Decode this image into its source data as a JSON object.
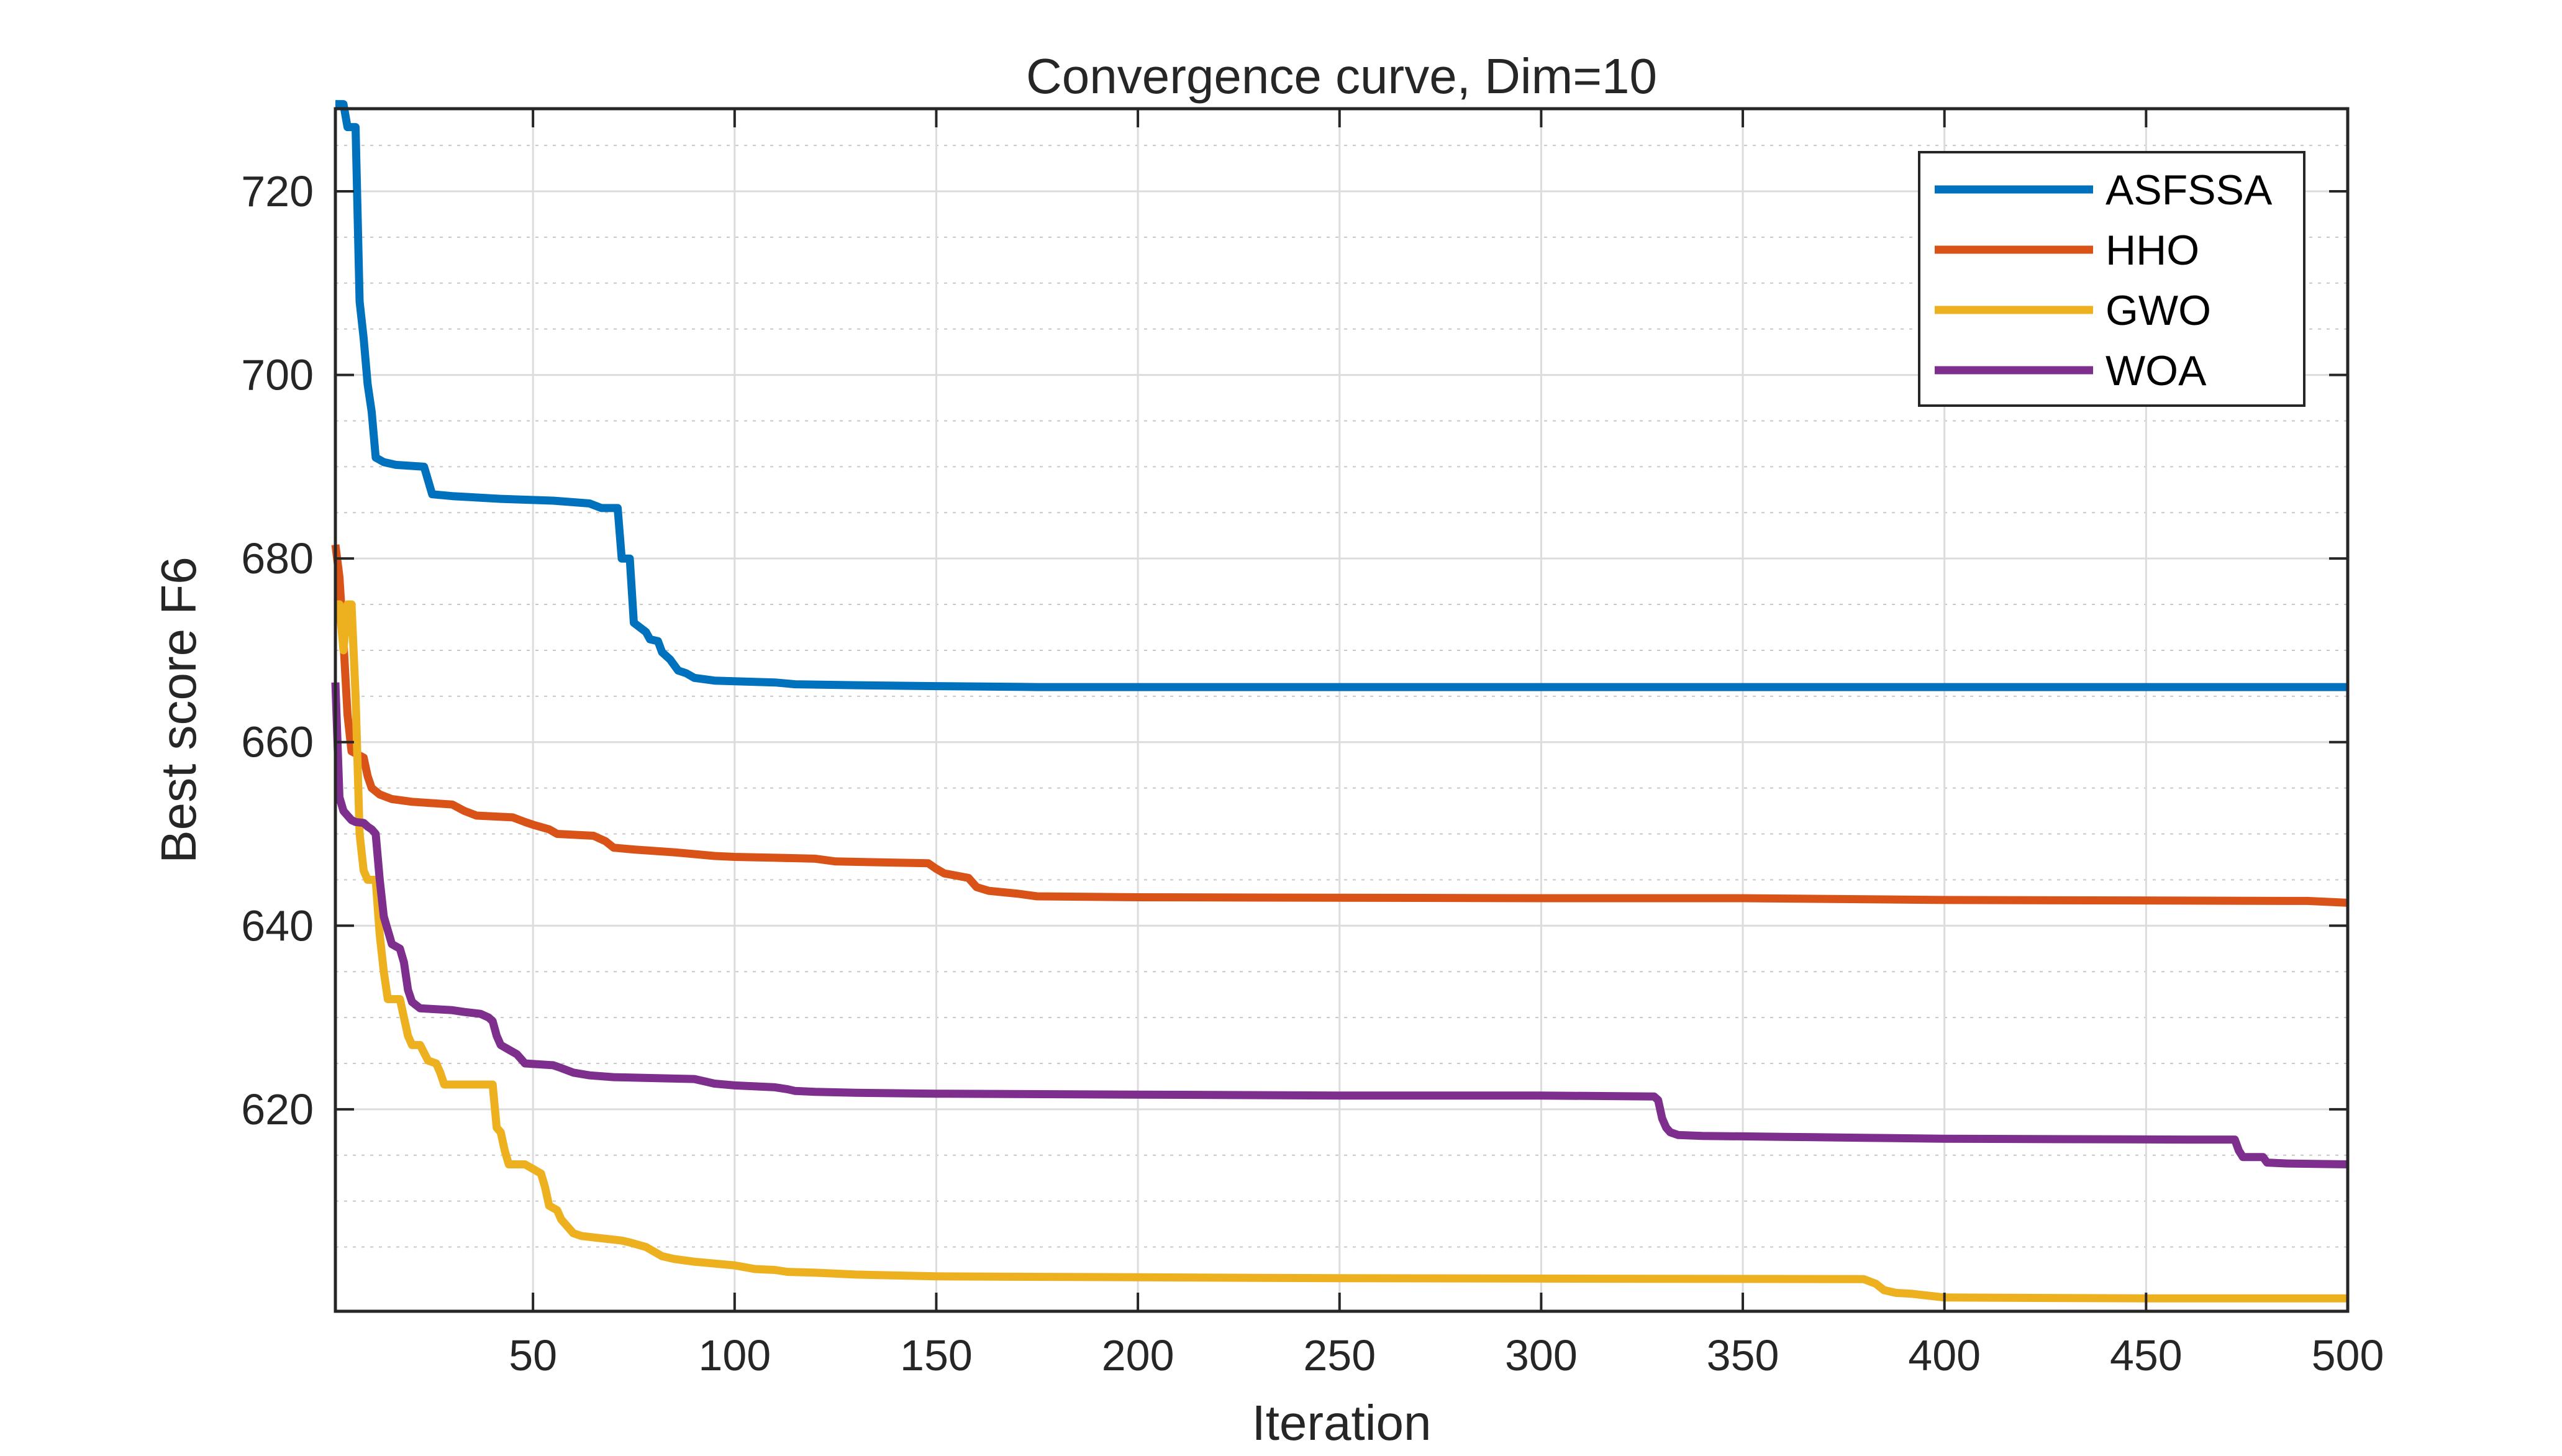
{
  "chart_data": {
    "type": "line",
    "title": "Convergence curve, Dim=10",
    "xlabel": "Iteration",
    "ylabel": "Best score F6",
    "xlim": [
      1,
      500
    ],
    "ylim": [
      598,
      729
    ],
    "grid": true,
    "legend_position": "top-right",
    "x_ticks": [
      50,
      100,
      150,
      200,
      250,
      300,
      350,
      400,
      450,
      500
    ],
    "y_ticks": [
      620,
      640,
      660,
      680,
      700,
      720
    ],
    "series": [
      {
        "name": "ASFSSA",
        "color": "#0072BD",
        "points": [
          [
            1,
            729.5
          ],
          [
            3,
            729.5
          ],
          [
            4,
            727
          ],
          [
            6,
            727
          ],
          [
            7,
            708
          ],
          [
            8,
            704
          ],
          [
            9,
            699
          ],
          [
            10,
            696
          ],
          [
            11,
            691
          ],
          [
            13,
            690.5
          ],
          [
            16,
            690.2
          ],
          [
            23,
            690
          ],
          [
            24,
            688.5
          ],
          [
            25,
            687
          ],
          [
            30,
            686.8
          ],
          [
            42,
            686.5
          ],
          [
            55,
            686.3
          ],
          [
            64,
            686
          ],
          [
            67,
            685.5
          ],
          [
            71,
            685.5
          ],
          [
            72,
            680
          ],
          [
            74,
            680
          ],
          [
            75,
            673
          ],
          [
            78,
            672
          ],
          [
            79,
            671.2
          ],
          [
            81,
            671
          ],
          [
            82,
            669.8
          ],
          [
            84,
            669
          ],
          [
            86,
            667.8
          ],
          [
            88,
            667.5
          ],
          [
            90,
            667
          ],
          [
            95,
            666.7
          ],
          [
            110,
            666.5
          ],
          [
            115,
            666.3
          ],
          [
            130,
            666.2
          ],
          [
            150,
            666.1
          ],
          [
            175,
            666
          ],
          [
            300,
            666
          ],
          [
            500,
            666
          ]
        ]
      },
      {
        "name": "HHO",
        "color": "#D95319",
        "points": [
          [
            1,
            681.5
          ],
          [
            2,
            678
          ],
          [
            3,
            671
          ],
          [
            4,
            663
          ],
          [
            5,
            659
          ],
          [
            8,
            658.3
          ],
          [
            9,
            656.3
          ],
          [
            10,
            655
          ],
          [
            12,
            654.3
          ],
          [
            15,
            653.8
          ],
          [
            20,
            653.5
          ],
          [
            30,
            653.2
          ],
          [
            33,
            652.5
          ],
          [
            36,
            652
          ],
          [
            45,
            651.8
          ],
          [
            48,
            651.3
          ],
          [
            50,
            651
          ],
          [
            54,
            650.5
          ],
          [
            56,
            650
          ],
          [
            65,
            649.8
          ],
          [
            68,
            649.2
          ],
          [
            70,
            648.5
          ],
          [
            75,
            648.3
          ],
          [
            85,
            648
          ],
          [
            90,
            647.8
          ],
          [
            95,
            647.6
          ],
          [
            100,
            647.5
          ],
          [
            110,
            647.4
          ],
          [
            120,
            647.3
          ],
          [
            125,
            647
          ],
          [
            148,
            646.8
          ],
          [
            150,
            646.2
          ],
          [
            152,
            645.7
          ],
          [
            158,
            645.2
          ],
          [
            160,
            644.2
          ],
          [
            163,
            643.8
          ],
          [
            170,
            643.5
          ],
          [
            175,
            643.2
          ],
          [
            200,
            643.1
          ],
          [
            300,
            643
          ],
          [
            350,
            643
          ],
          [
            400,
            642.8
          ],
          [
            490,
            642.7
          ],
          [
            500,
            642.5
          ]
        ]
      },
      {
        "name": "GWO",
        "color": "#EDB120",
        "points": [
          [
            1,
            675
          ],
          [
            2,
            675
          ],
          [
            3,
            670
          ],
          [
            4,
            675
          ],
          [
            5,
            675
          ],
          [
            6,
            665
          ],
          [
            7,
            650
          ],
          [
            8,
            646
          ],
          [
            9,
            645
          ],
          [
            10,
            645
          ],
          [
            11,
            645
          ],
          [
            12,
            639
          ],
          [
            13,
            635
          ],
          [
            14,
            632
          ],
          [
            17,
            632
          ],
          [
            18,
            630
          ],
          [
            19,
            628
          ],
          [
            20,
            627
          ],
          [
            22,
            627
          ],
          [
            24,
            625.3
          ],
          [
            26,
            625
          ],
          [
            27,
            624
          ],
          [
            28,
            622.7
          ],
          [
            40,
            622.7
          ],
          [
            41,
            618
          ],
          [
            42,
            617.5
          ],
          [
            43,
            615.5
          ],
          [
            44,
            614
          ],
          [
            48,
            614
          ],
          [
            50,
            613.5
          ],
          [
            52,
            613
          ],
          [
            53,
            611.5
          ],
          [
            54,
            609.5
          ],
          [
            56,
            609
          ],
          [
            57,
            608
          ],
          [
            58,
            607.5
          ],
          [
            60,
            606.5
          ],
          [
            62,
            606.2
          ],
          [
            66,
            606
          ],
          [
            70,
            605.8
          ],
          [
            72,
            605.7
          ],
          [
            74,
            605.5
          ],
          [
            78,
            605
          ],
          [
            80,
            604.5
          ],
          [
            82,
            604
          ],
          [
            85,
            603.7
          ],
          [
            90,
            603.4
          ],
          [
            95,
            603.2
          ],
          [
            100,
            603
          ],
          [
            105,
            602.6
          ],
          [
            110,
            602.5
          ],
          [
            113,
            602.3
          ],
          [
            120,
            602.2
          ],
          [
            130,
            602
          ],
          [
            150,
            601.8
          ],
          [
            200,
            601.7
          ],
          [
            250,
            601.6
          ],
          [
            380,
            601.5
          ],
          [
            383,
            601
          ],
          [
            385,
            600.3
          ],
          [
            388,
            600
          ],
          [
            392,
            599.9
          ],
          [
            400,
            599.5
          ],
          [
            450,
            599.4
          ],
          [
            500,
            599.4
          ]
        ]
      },
      {
        "name": "WOA",
        "color": "#7E2F8E",
        "points": [
          [
            1,
            666.5
          ],
          [
            2,
            654
          ],
          [
            3,
            652.5
          ],
          [
            4,
            652
          ],
          [
            5,
            651.5
          ],
          [
            6,
            651.3
          ],
          [
            8,
            651.2
          ],
          [
            9,
            650.8
          ],
          [
            10,
            650.5
          ],
          [
            11,
            650
          ],
          [
            12,
            645
          ],
          [
            13,
            641
          ],
          [
            14,
            639.5
          ],
          [
            15,
            638
          ],
          [
            17,
            637.5
          ],
          [
            18,
            636
          ],
          [
            19,
            633
          ],
          [
            20,
            631.7
          ],
          [
            22,
            631
          ],
          [
            30,
            630.8
          ],
          [
            33,
            630.6
          ],
          [
            37,
            630.4
          ],
          [
            39,
            630
          ],
          [
            40,
            629.6
          ],
          [
            41,
            628
          ],
          [
            42,
            627
          ],
          [
            44,
            626.5
          ],
          [
            46,
            626
          ],
          [
            47,
            625.5
          ],
          [
            48,
            625
          ],
          [
            55,
            624.8
          ],
          [
            57,
            624.5
          ],
          [
            60,
            624
          ],
          [
            64,
            623.7
          ],
          [
            70,
            623.5
          ],
          [
            80,
            623.4
          ],
          [
            90,
            623.3
          ],
          [
            93,
            623
          ],
          [
            95,
            622.8
          ],
          [
            100,
            622.6
          ],
          [
            105,
            622.5
          ],
          [
            110,
            622.4
          ],
          [
            113,
            622.2
          ],
          [
            115,
            622
          ],
          [
            120,
            621.9
          ],
          [
            130,
            621.8
          ],
          [
            150,
            621.7
          ],
          [
            200,
            621.6
          ],
          [
            250,
            621.5
          ],
          [
            300,
            621.5
          ],
          [
            328,
            621.4
          ],
          [
            329,
            621
          ],
          [
            330,
            619
          ],
          [
            331,
            618
          ],
          [
            332,
            617.5
          ],
          [
            334,
            617.2
          ],
          [
            340,
            617.1
          ],
          [
            360,
            617
          ],
          [
            380,
            616.9
          ],
          [
            400,
            616.8
          ],
          [
            460,
            616.7
          ],
          [
            472,
            616.7
          ],
          [
            473,
            615.5
          ],
          [
            474,
            614.8
          ],
          [
            479,
            614.8
          ],
          [
            480,
            614.2
          ],
          [
            485,
            614.1
          ],
          [
            500,
            614
          ]
        ]
      }
    ]
  }
}
